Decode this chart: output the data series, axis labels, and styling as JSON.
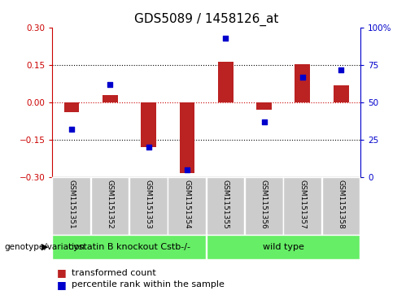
{
  "title": "GDS5089 / 1458126_at",
  "samples": [
    "GSM1151351",
    "GSM1151352",
    "GSM1151353",
    "GSM1151354",
    "GSM1151355",
    "GSM1151356",
    "GSM1151357",
    "GSM1151358"
  ],
  "bar_values": [
    -0.04,
    0.03,
    -0.18,
    -0.285,
    0.165,
    -0.03,
    0.155,
    0.07
  ],
  "dot_values": [
    32,
    62,
    20,
    5,
    93,
    37,
    67,
    72
  ],
  "bar_color": "#bb2222",
  "dot_color": "#0000cc",
  "ylim_left": [
    -0.3,
    0.3
  ],
  "ylim_right": [
    0,
    100
  ],
  "yticks_left": [
    -0.3,
    -0.15,
    0.0,
    0.15,
    0.3
  ],
  "yticks_right": [
    0,
    25,
    50,
    75,
    100
  ],
  "group0_label": "cystatin B knockout Cstb-/-",
  "group1_label": "wild type",
  "group0_count": 4,
  "group1_count": 4,
  "group_color": "#66ee66",
  "sample_box_color": "#cccccc",
  "genotype_label": "genotype/variation",
  "legend_bar_label": "transformed count",
  "legend_dot_label": "percentile rank within the sample",
  "zero_line_color": "#cc0000",
  "hline_color": "#000000",
  "title_fontsize": 11,
  "tick_fontsize": 7.5,
  "sample_fontsize": 6.5,
  "group_fontsize": 8,
  "legend_fontsize": 8,
  "bar_width": 0.4
}
